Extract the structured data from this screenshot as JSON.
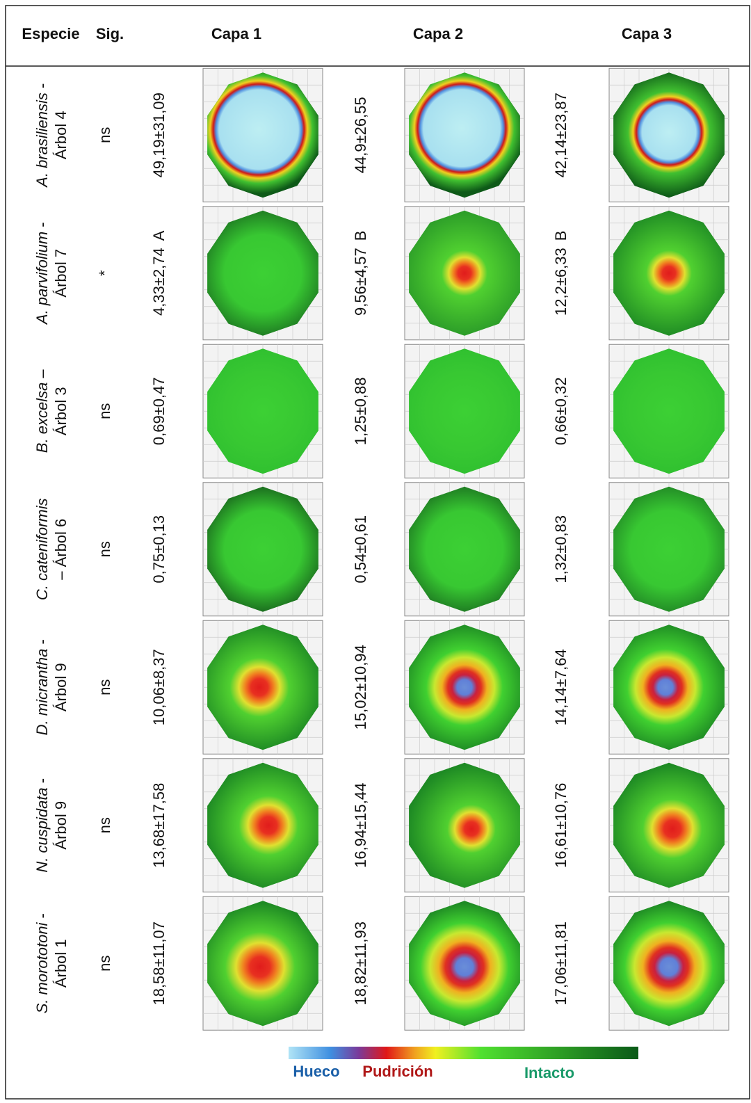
{
  "header": {
    "species": "Especie",
    "sig": "Sig.",
    "layers": [
      "Capa 1",
      "Capa 2",
      "Capa 3"
    ]
  },
  "rows": [
    {
      "species": "A. brasiliensis",
      "after": " -",
      "line2": "Árbol 4",
      "sig": "ns",
      "layers": [
        {
          "value": "49,19±31,09"
        },
        {
          "value": "44,9±26,55"
        },
        {
          "value": "42,14±23,87"
        }
      ]
    },
    {
      "species": "A. parvifolium",
      "after": " -",
      "line2": "Árbol 7",
      "sig": "*",
      "layers": [
        {
          "value": "4,33±2,74",
          "letter": "A"
        },
        {
          "value": "9,56±4,57",
          "letter": "B"
        },
        {
          "value": "12,2±6,33",
          "letter": "B"
        }
      ]
    },
    {
      "species": "B. excelsa",
      "after": " –",
      "line2": "Árbol 3",
      "sig": "ns",
      "layers": [
        {
          "value": "0,69±0,47"
        },
        {
          "value": "1,25±0,88"
        },
        {
          "value": "0,66±0,32"
        }
      ]
    },
    {
      "species": "C. cateniformis",
      "line2": "– Árbol 6",
      "sig": "ns",
      "layers": [
        {
          "value": "0,75±0,13"
        },
        {
          "value": "0,54±0,61"
        },
        {
          "value": "1,32±0,83"
        }
      ]
    },
    {
      "species": "D. micrantha",
      "after": " -",
      "line2": "Árbol 9",
      "sig": "ns",
      "layers": [
        {
          "value": "10,06±8,37"
        },
        {
          "value": "15,02±10,94"
        },
        {
          "value": "14,14±7,64"
        }
      ]
    },
    {
      "species": "N. cuspidata",
      "after": " -",
      "line2": "Árbol 9",
      "sig": "ns",
      "layers": [
        {
          "value": "13,68±17,58"
        },
        {
          "value": "16,94±15,44"
        },
        {
          "value": "16,61±10,76"
        }
      ]
    },
    {
      "species": "S. morototoni",
      "after": " -",
      "line2": "Árbol 1",
      "sig": "ns",
      "layers": [
        {
          "value": "18,58±11,07"
        },
        {
          "value": "18,82±11,93"
        },
        {
          "value": "17,06±11,81"
        }
      ]
    }
  ],
  "legend": {
    "hollow": "Hueco",
    "rot": "Pudrición",
    "intact": "Intacto"
  }
}
